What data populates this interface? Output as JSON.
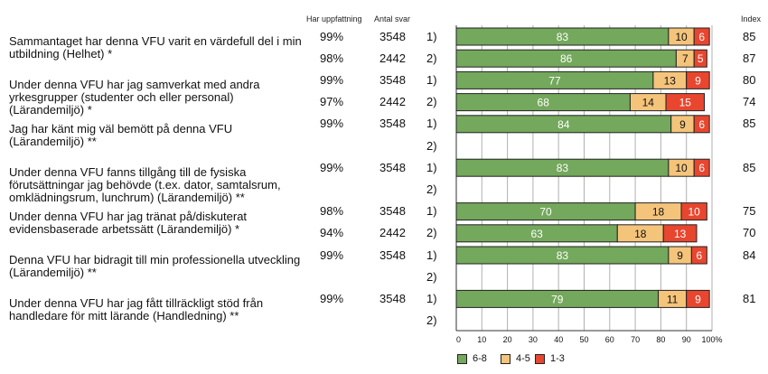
{
  "headers": {
    "opinion": "Har uppfattning",
    "count": "Antal svar",
    "index": "Index"
  },
  "questions": [
    {
      "text": "Sammantaget har denna VFU varit en värdefull del i min utbildning (Helhet) *"
    },
    {
      "text": "Under denna VFU har jag samverkat med andra yrkesgrupper (studenter och eller personal) (Lärandemiljö) *"
    },
    {
      "text": "Jag har känt mig väl bemött på denna VFU (Lärandemiljö) **"
    },
    {
      "text": "Under denna VFU fanns tillgång till de fysiska förutsättningar jag behövde (t.ex. dator, samtalsrum, omklädningsrum, lunchrum) (Lärandemiljö) **"
    },
    {
      "text": "Under denna VFU har jag tränat på/diskuterat evidensbaserade arbetssätt (Lärandemiljö) *"
    },
    {
      "text": "Denna VFU har bidragit till min professionella utveckling (Lärandemiljö) **"
    },
    {
      "text": "Under denna VFU har jag fått tillräckligt stöd från handledare för mitt lärande (Handledning) **"
    }
  ],
  "chart_data": {
    "type": "bar",
    "orientation": "horizontal",
    "stacked": true,
    "xlim": [
      0,
      100
    ],
    "xticks": [
      "0",
      "10",
      "20",
      "30",
      "40",
      "50",
      "60",
      "70",
      "80",
      "90",
      "100%"
    ],
    "series_names": [
      "6-8",
      "4-5",
      "1-3"
    ],
    "colors": [
      "#74a85c",
      "#f5c47b",
      "#e8462f"
    ],
    "rows": [
      {
        "group": 0,
        "marker": "1)",
        "opinion": "99%",
        "count": "3548",
        "values": [
          83,
          10,
          6
        ],
        "index": "85"
      },
      {
        "group": 0,
        "marker": "2)",
        "opinion": "98%",
        "count": "2442",
        "values": [
          86,
          7,
          5
        ],
        "index": "87"
      },
      {
        "group": 1,
        "marker": "1)",
        "opinion": "99%",
        "count": "3548",
        "values": [
          77,
          13,
          9
        ],
        "index": "80"
      },
      {
        "group": 1,
        "marker": "2)",
        "opinion": "97%",
        "count": "2442",
        "values": [
          68,
          14,
          15
        ],
        "index": "74"
      },
      {
        "group": 2,
        "marker": "1)",
        "opinion": "99%",
        "count": "3548",
        "values": [
          84,
          9,
          6
        ],
        "index": "85"
      },
      {
        "group": 2,
        "marker": "2)",
        "opinion": "",
        "count": "",
        "values": null,
        "index": ""
      },
      {
        "group": 3,
        "marker": "1)",
        "opinion": "99%",
        "count": "3548",
        "values": [
          83,
          10,
          6
        ],
        "index": "85"
      },
      {
        "group": 3,
        "marker": "2)",
        "opinion": "",
        "count": "",
        "values": null,
        "index": ""
      },
      {
        "group": 4,
        "marker": "1)",
        "opinion": "98%",
        "count": "3548",
        "values": [
          70,
          18,
          10
        ],
        "index": "75"
      },
      {
        "group": 4,
        "marker": "2)",
        "opinion": "94%",
        "count": "2442",
        "values": [
          63,
          18,
          13
        ],
        "index": "70"
      },
      {
        "group": 5,
        "marker": "1)",
        "opinion": "99%",
        "count": "3548",
        "values": [
          83,
          9,
          6
        ],
        "index": "84"
      },
      {
        "group": 5,
        "marker": "2)",
        "opinion": "",
        "count": "",
        "values": null,
        "index": ""
      },
      {
        "group": 6,
        "marker": "1)",
        "opinion": "99%",
        "count": "3548",
        "values": [
          79,
          11,
          9
        ],
        "index": "81"
      },
      {
        "group": 6,
        "marker": "2)",
        "opinion": "",
        "count": "",
        "values": null,
        "index": ""
      }
    ]
  }
}
